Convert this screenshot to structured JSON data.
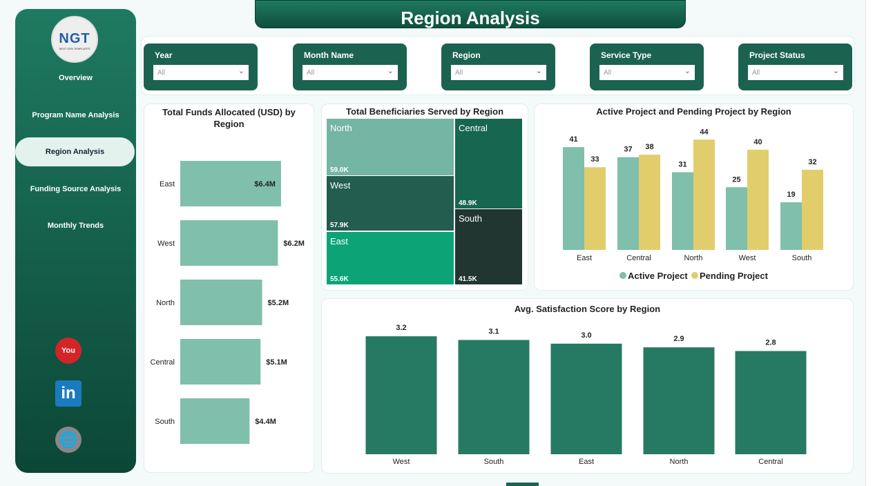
{
  "title": "Region Analysis",
  "logo": {
    "text": "NGT",
    "subtitle": "NEXT GEN TEMPLATES"
  },
  "nav": [
    {
      "label": "Overview"
    },
    {
      "label": "Program Name Analysis"
    },
    {
      "label": "Region Analysis",
      "active": true
    },
    {
      "label": "Funding Source Analysis"
    },
    {
      "label": "Monthly Trends"
    }
  ],
  "social": [
    "youtube-icon",
    "linkedin-icon",
    "globe-icon"
  ],
  "filters": [
    {
      "label": "Year",
      "value": "All"
    },
    {
      "label": "Month Name",
      "value": "All"
    },
    {
      "label": "Region",
      "value": "All"
    },
    {
      "label": "Service Type",
      "value": "All"
    },
    {
      "label": "Project Status",
      "value": "All"
    }
  ],
  "chart_data": [
    {
      "type": "bar",
      "orientation": "horizontal",
      "title": "Total Funds Allocated (USD) by Region",
      "categories": [
        "East",
        "West",
        "North",
        "Central",
        "South"
      ],
      "values": [
        6.4,
        6.2,
        5.2,
        5.1,
        4.4
      ],
      "labels": [
        "$6.4M",
        "$6.2M",
        "$5.2M",
        "$5.1M",
        "$4.4M"
      ],
      "color": "#7fbfab"
    },
    {
      "type": "treemap",
      "title": "Total Beneficiaries Served by Region",
      "categories": [
        "North",
        "West",
        "East",
        "Central",
        "South"
      ],
      "values": [
        59.0,
        57.9,
        55.6,
        48.9,
        41.5
      ],
      "labels": [
        "59.0K",
        "57.9K",
        "55.6K",
        "48.9K",
        "41.5K"
      ],
      "colors": [
        "#74b5a3",
        "#235d4f",
        "#0ca377",
        "#176650",
        "#223631"
      ]
    },
    {
      "type": "bar",
      "title": "Active Project and Pending Project by Region",
      "categories": [
        "East",
        "Central",
        "North",
        "West",
        "South"
      ],
      "series": [
        {
          "name": "Active Project",
          "values": [
            41,
            37,
            31,
            25,
            19
          ],
          "color": "#7fbfab"
        },
        {
          "name": "Pending Project",
          "values": [
            33,
            38,
            44,
            40,
            32
          ],
          "color": "#e2cd6d"
        }
      ],
      "legend": "bottom"
    },
    {
      "type": "bar",
      "title": "Avg. Satisfaction Score by Region",
      "categories": [
        "West",
        "South",
        "East",
        "North",
        "Central"
      ],
      "values": [
        3.2,
        3.1,
        3.0,
        2.9,
        2.8
      ],
      "color": "#267a63"
    }
  ]
}
